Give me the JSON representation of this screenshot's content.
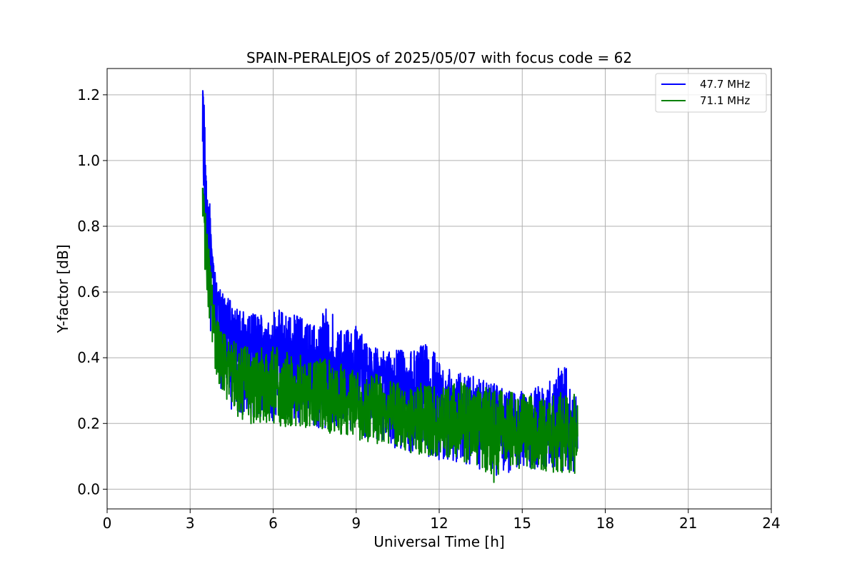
{
  "chart_data": {
    "type": "line",
    "title": "SPAIN-PERALEJOS of 2025/05/07 with focus code = 62",
    "xlabel": "Universal Time [h]",
    "ylabel": "Y-factor [dB]",
    "xlim": [
      0,
      24
    ],
    "ylim": [
      -0.06,
      1.28
    ],
    "xticks": [
      0,
      3,
      6,
      9,
      12,
      15,
      18,
      21,
      24
    ],
    "yticks": [
      0.0,
      0.2,
      0.4,
      0.6,
      0.8,
      1.0,
      1.2
    ],
    "ytick_labels": [
      "0.0",
      "0.2",
      "0.4",
      "0.6",
      "0.8",
      "1.0",
      "1.2"
    ],
    "grid": true,
    "legend_position": "top-right",
    "series": [
      {
        "name": "47.7 MHz",
        "color": "#0000ff",
        "x": [
          3.45,
          3.5,
          3.55,
          3.6,
          3.7,
          3.8,
          3.9,
          4.0,
          4.2,
          4.4,
          4.6,
          4.8,
          5.0,
          5.5,
          6.0,
          6.5,
          7.0,
          7.5,
          8.0,
          8.5,
          9.0,
          9.5,
          10.0,
          10.5,
          11.0,
          11.5,
          12.0,
          12.5,
          13.0,
          13.5,
          14.0,
          14.5,
          15.0,
          15.5,
          16.0,
          16.5,
          17.0
        ],
        "values": [
          1.22,
          1.12,
          0.98,
          0.88,
          0.78,
          0.7,
          0.64,
          0.58,
          0.54,
          0.52,
          0.5,
          0.48,
          0.47,
          0.45,
          0.44,
          0.43,
          0.42,
          0.41,
          0.4,
          0.39,
          0.37,
          0.36,
          0.34,
          0.33,
          0.31,
          0.3,
          0.28,
          0.27,
          0.26,
          0.25,
          0.24,
          0.23,
          0.22,
          0.22,
          0.21,
          0.21,
          0.2
        ],
        "range_low": [
          0.9,
          0.8,
          0.7,
          0.6,
          0.5,
          0.45,
          0.38,
          0.32,
          0.28,
          0.25,
          0.23,
          0.22,
          0.21,
          0.2,
          0.2,
          0.2,
          0.19,
          0.19,
          0.18,
          0.17,
          0.16,
          0.15,
          0.13,
          0.12,
          0.11,
          0.1,
          0.09,
          0.08,
          0.07,
          0.06,
          0.04,
          0.05,
          0.06,
          0.06,
          0.06,
          0.05,
          0.04
        ],
        "range_high": [
          1.22,
          1.2,
          1.05,
          0.96,
          0.9,
          0.72,
          0.66,
          0.62,
          0.6,
          0.58,
          0.56,
          0.55,
          0.54,
          0.53,
          0.55,
          0.54,
          0.53,
          0.5,
          0.56,
          0.48,
          0.5,
          0.44,
          0.42,
          0.43,
          0.42,
          0.45,
          0.41,
          0.36,
          0.36,
          0.34,
          0.32,
          0.3,
          0.3,
          0.31,
          0.33,
          0.39,
          0.27
        ]
      },
      {
        "name": "71.1 MHz",
        "color": "#008000",
        "x": [
          3.45,
          3.5,
          3.55,
          3.6,
          3.7,
          3.8,
          3.9,
          4.0,
          4.2,
          4.4,
          4.6,
          4.8,
          5.0,
          5.5,
          6.0,
          6.5,
          7.0,
          7.5,
          8.0,
          8.5,
          9.0,
          9.5,
          10.0,
          10.5,
          11.0,
          11.5,
          12.0,
          12.5,
          13.0,
          13.5,
          14.0,
          14.5,
          15.0,
          15.5,
          16.0,
          16.5,
          17.0
        ],
        "values": [
          0.92,
          0.84,
          0.76,
          0.68,
          0.6,
          0.54,
          0.48,
          0.44,
          0.4,
          0.37,
          0.35,
          0.34,
          0.33,
          0.32,
          0.31,
          0.3,
          0.3,
          0.29,
          0.28,
          0.27,
          0.26,
          0.25,
          0.24,
          0.23,
          0.22,
          0.21,
          0.2,
          0.2,
          0.19,
          0.18,
          0.18,
          0.17,
          0.17,
          0.17,
          0.16,
          0.16,
          0.16
        ],
        "range_low": [
          0.78,
          0.7,
          0.62,
          0.55,
          0.48,
          0.43,
          0.37,
          0.32,
          0.28,
          0.25,
          0.23,
          0.21,
          0.2,
          0.19,
          0.19,
          0.19,
          0.19,
          0.18,
          0.17,
          0.16,
          0.15,
          0.14,
          0.13,
          0.12,
          0.11,
          0.1,
          0.1,
          0.09,
          0.08,
          0.07,
          0.01,
          0.06,
          0.06,
          0.06,
          0.05,
          0.05,
          0.04
        ],
        "range_high": [
          0.95,
          0.9,
          0.86,
          0.8,
          0.72,
          0.62,
          0.56,
          0.52,
          0.48,
          0.46,
          0.45,
          0.44,
          0.44,
          0.43,
          0.44,
          0.42,
          0.41,
          0.4,
          0.4,
          0.38,
          0.37,
          0.36,
          0.34,
          0.33,
          0.33,
          0.33,
          0.32,
          0.33,
          0.32,
          0.32,
          0.3,
          0.3,
          0.29,
          0.28,
          0.28,
          0.3,
          0.3
        ]
      }
    ]
  }
}
